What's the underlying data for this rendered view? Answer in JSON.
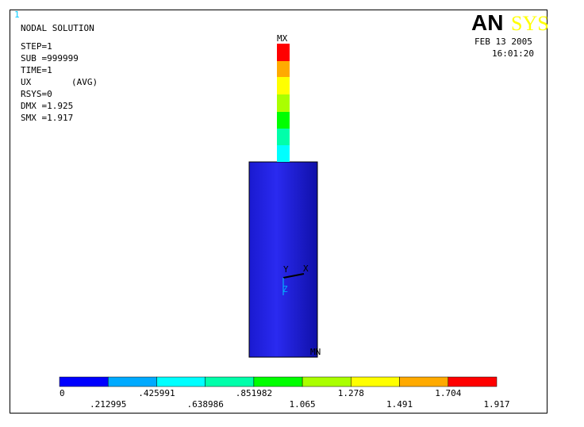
{
  "window_number": "1",
  "title": "NODAL SOLUTION",
  "info": [
    "STEP=1",
    "SUB =999999",
    "TIME=1",
    "UX",
    "RSYS=0",
    "DMX =1.925",
    "SMX =1.917"
  ],
  "avg_note": "(AVG)",
  "logo": {
    "left": "AN",
    "right": "SYS"
  },
  "date": "FEB 13 2005",
  "time": "16:01:20",
  "max_label": "MX",
  "min_label": "MN",
  "triad": {
    "y": "Y",
    "x": "X",
    "z": "Z"
  },
  "legend": {
    "colors": [
      "#0000ff",
      "#00aaff",
      "#00ffff",
      "#00ffaa",
      "#00ff00",
      "#aaff00",
      "#ffff00",
      "#ffaa00",
      "#ff0000"
    ],
    "labels": [
      "0",
      ".212995",
      ".425991",
      ".638986",
      ".851982",
      "1.065",
      "1.278",
      "1.491",
      "1.704",
      "1.917"
    ]
  }
}
